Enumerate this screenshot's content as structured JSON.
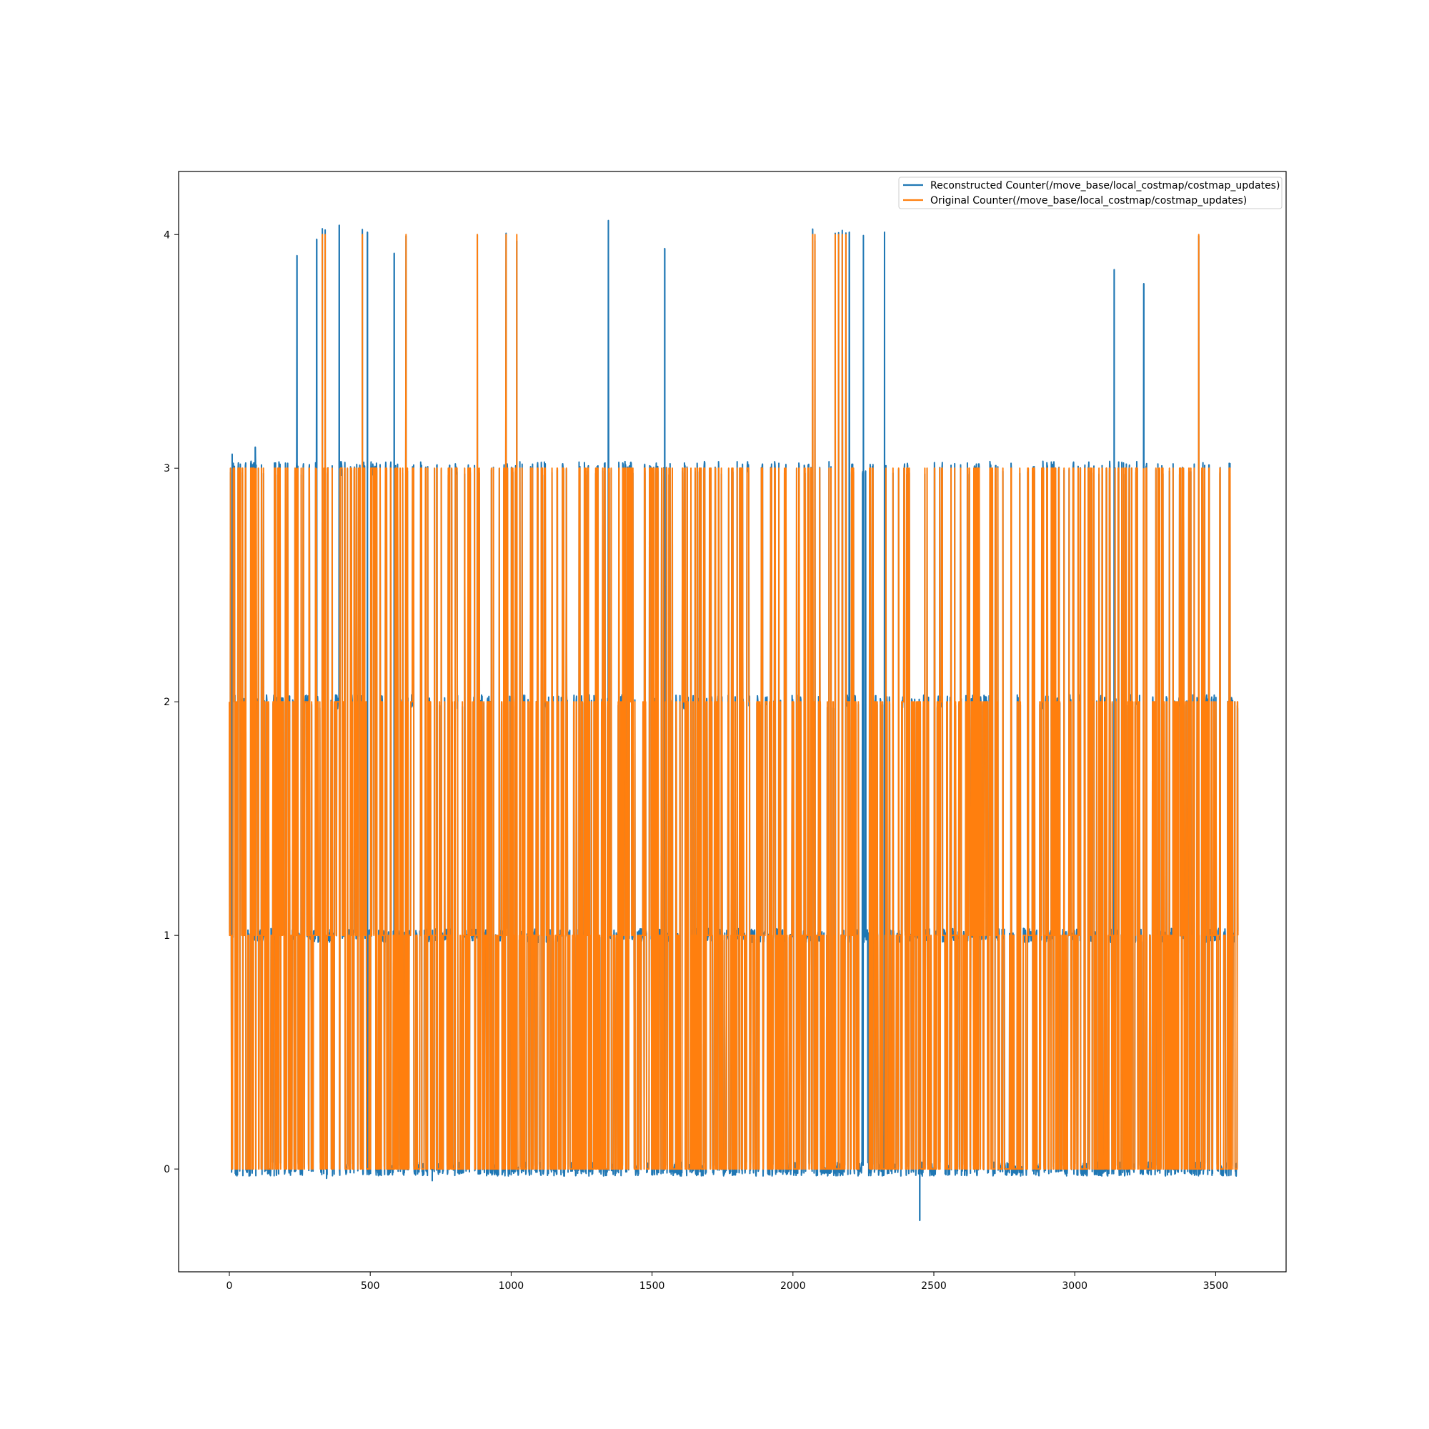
{
  "chart_data": {
    "type": "line",
    "title": "",
    "xlabel": "",
    "ylabel": "",
    "xlim": [
      -180,
      3750
    ],
    "ylim": [
      -0.44,
      4.27
    ],
    "x_ticks": [
      0,
      500,
      1000,
      1500,
      2000,
      2500,
      3000,
      3500
    ],
    "y_ticks": [
      0,
      1,
      2,
      3,
      4
    ],
    "grid": false,
    "legend": "top-right",
    "n_points": 3580,
    "series": [
      {
        "name": "Reconstructed Counter(/move_base/local_costmap/costmap_updates)",
        "color": "#1f77b4",
        "style": "noisy values in the range -0.05 to 0.05 around the integer counts 0, 1, 2, 3",
        "spikes": [
          {
            "x": 10,
            "y": 3.06
          },
          {
            "x": 92,
            "y": 3.09
          },
          {
            "x": 240,
            "y": 3.91
          },
          {
            "x": 310,
            "y": 3.98
          },
          {
            "x": 390,
            "y": 4.04
          },
          {
            "x": 490,
            "y": 4.01
          },
          {
            "x": 585,
            "y": 3.92
          },
          {
            "x": 1345,
            "y": 4.06
          },
          {
            "x": 1545,
            "y": 3.94
          },
          {
            "x": 2200,
            "y": 4.01
          },
          {
            "x": 2325,
            "y": 4.01
          },
          {
            "x": 3140,
            "y": 3.85
          },
          {
            "x": 3245,
            "y": 3.79
          },
          {
            "x": 2450,
            "y": -0.22
          },
          {
            "x": 720,
            "y": -0.05
          },
          {
            "x": 345,
            "y": -0.04
          }
        ]
      },
      {
        "name": "Original Counter(/move_base/local_costmap/costmap_updates)",
        "color": "#ff7f0e",
        "style": "integer values 0, 1, 2, 3 changing step by step",
        "spikes": [
          {
            "x": 330,
            "y": 4
          },
          {
            "x": 340,
            "y": 4
          },
          {
            "x": 472,
            "y": 4
          },
          {
            "x": 627,
            "y": 4
          },
          {
            "x": 880,
            "y": 4
          },
          {
            "x": 982,
            "y": 4
          },
          {
            "x": 1020,
            "y": 4
          },
          {
            "x": 2070,
            "y": 4
          },
          {
            "x": 2078,
            "y": 4
          },
          {
            "x": 2150,
            "y": 4
          },
          {
            "x": 2162,
            "y": 4
          },
          {
            "x": 2175,
            "y": 4
          },
          {
            "x": 2188,
            "y": 4
          },
          {
            "x": 2250,
            "y": 4
          },
          {
            "x": 3440,
            "y": 4
          }
        ],
        "gap": [
          2238,
          2270
        ]
      }
    ]
  }
}
